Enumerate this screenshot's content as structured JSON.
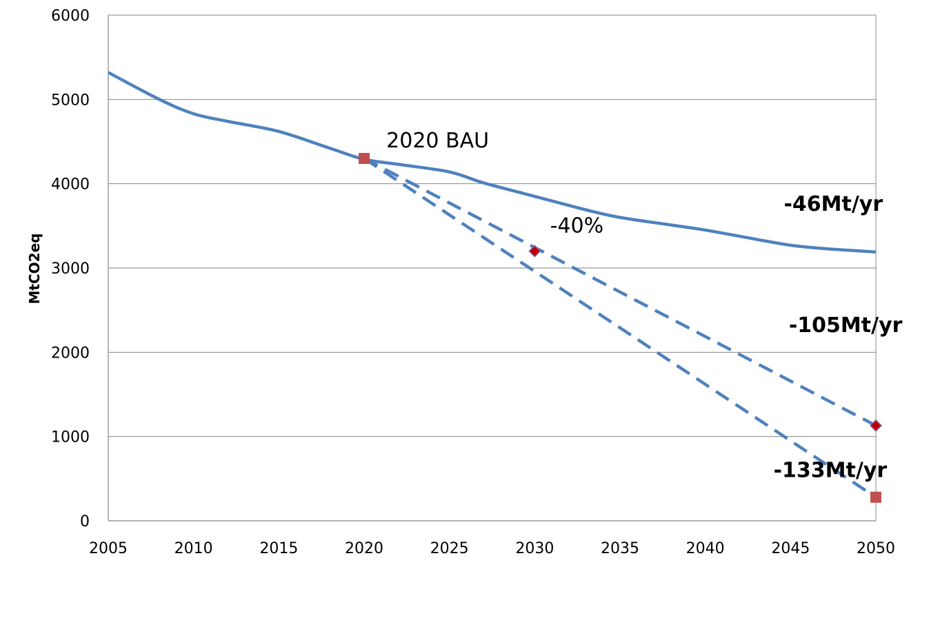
{
  "chart_data": {
    "type": "line",
    "title": "",
    "xlabel": "",
    "ylabel": "MtCO2eq",
    "xlim": [
      2005,
      2050
    ],
    "ylim": [
      0,
      6000
    ],
    "x_ticks": [
      "2005",
      "2010",
      "2015",
      "2020",
      "2025",
      "2030",
      "2035",
      "2040",
      "2045",
      "2050"
    ],
    "y_ticks": [
      "0",
      "1000",
      "2000",
      "3000",
      "4000",
      "5000",
      "6000"
    ],
    "grid": "horizontal",
    "legend": "none",
    "colors": {
      "line": "#4f81bd",
      "square_marker": "#c0504d",
      "diamond_marker": "#c00000",
      "diamond_outline": "#8064a2",
      "grid": "#868686"
    },
    "series": [
      {
        "style": "solid",
        "x": [
          2005,
          2008,
          2010,
          2012,
          2015,
          2018,
          2020,
          2022,
          2025,
          2027,
          2030,
          2033,
          2035,
          2038,
          2040,
          2043,
          2045,
          2047,
          2050
        ],
        "y": [
          5320,
          5000,
          4830,
          4740,
          4620,
          4420,
          4290,
          4230,
          4140,
          4010,
          3850,
          3690,
          3600,
          3510,
          3450,
          3340,
          3270,
          3230,
          3190
        ]
      },
      {
        "style": "dashed",
        "x": [
          2020,
          2050
        ],
        "y": [
          4300,
          1130
        ]
      },
      {
        "style": "dashed",
        "x": [
          2020,
          2050
        ],
        "y": [
          4300,
          280
        ]
      }
    ],
    "markers": [
      {
        "shape": "square",
        "x": 2020,
        "y": 4300
      },
      {
        "shape": "diamond",
        "x": 2030,
        "y": 3200
      },
      {
        "shape": "diamond",
        "x": 2050,
        "y": 1130
      },
      {
        "shape": "square",
        "x": 2050,
        "y": 280
      }
    ],
    "annotations": [
      {
        "text": "2020 BAU",
        "x": 2021.3,
        "y": 4430,
        "bold": false
      },
      {
        "text": "-40%",
        "x": 2030.9,
        "y": 3420,
        "bold": false
      },
      {
        "text": "-46Mt/yr",
        "x": 2044.6,
        "y": 3680,
        "bold": true
      },
      {
        "text": "-105Mt/yr",
        "x": 2044.9,
        "y": 2240,
        "bold": true
      },
      {
        "text": "-133Mt/yr",
        "x": 2044.0,
        "y": 520,
        "bold": true
      }
    ]
  }
}
